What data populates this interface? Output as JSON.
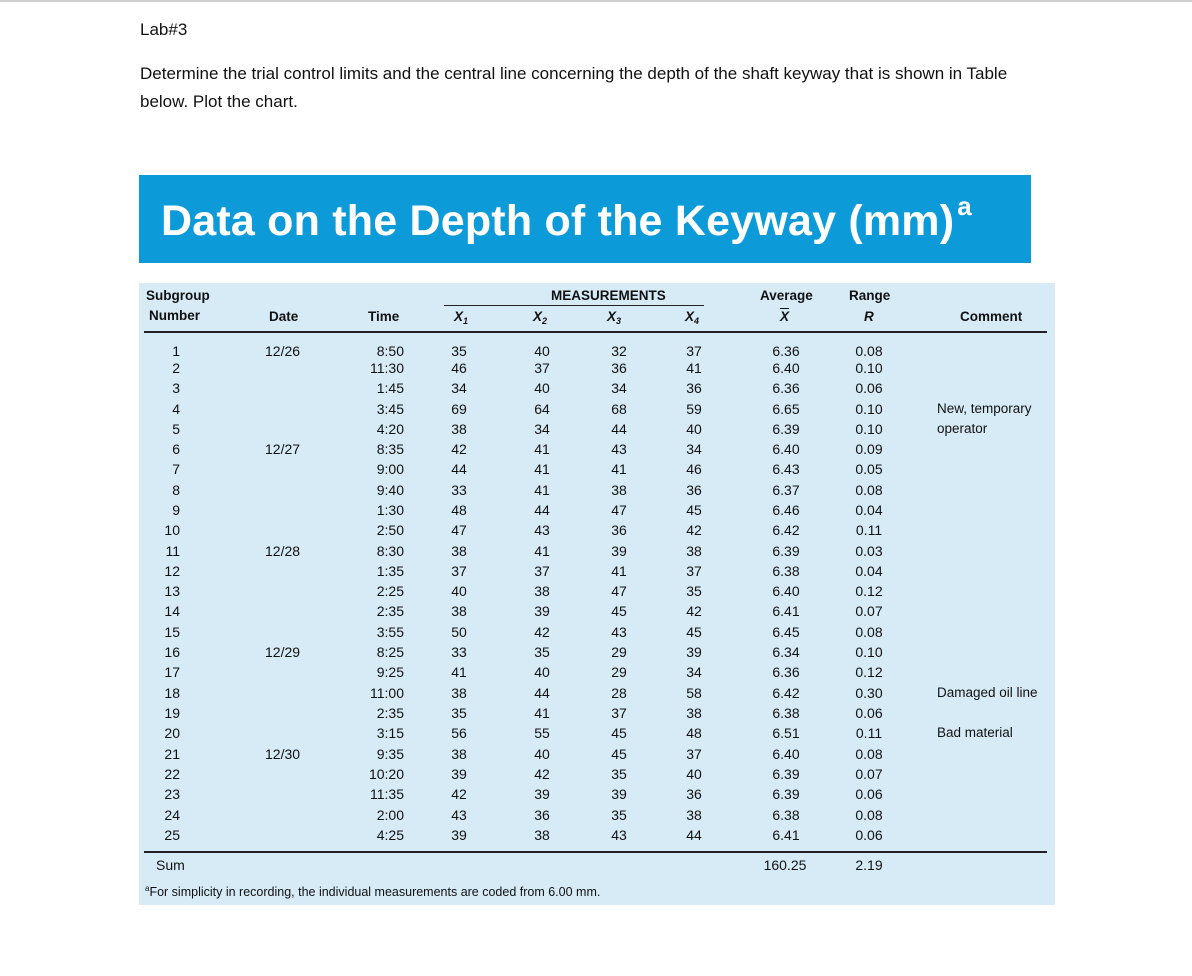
{
  "lab_title": "Lab#3",
  "question": "Determine the trial control limits and the central line concerning the depth of the shaft keyway that is shown in Table below.  Plot the chart.",
  "table": {
    "title": "Data on the Depth of the Keyway (mm)",
    "title_sup": "a",
    "headers": {
      "subgroup_line1": "Subgroup",
      "subgroup_line2": "Number",
      "date": "Date",
      "time": "Time",
      "measurements": "MEASUREMENTS",
      "x1": "X",
      "x1_sub": "1",
      "x2": "X",
      "x2_sub": "2",
      "x3": "X",
      "x3_sub": "3",
      "x4": "X",
      "x4_sub": "4",
      "average": "Average",
      "average_sym": "X",
      "range": "Range",
      "range_sym": "R",
      "comment": "Comment"
    },
    "rows": [
      {
        "n": "1",
        "date": "12/26",
        "time": "8:50",
        "x1": "35",
        "x2": "40",
        "x3": "32",
        "x4": "37",
        "avg": "6.36",
        "range": "0.08",
        "comment": ""
      },
      {
        "n": "2",
        "date": "",
        "time": "11:30",
        "x1": "46",
        "x2": "37",
        "x3": "36",
        "x4": "41",
        "avg": "6.40",
        "range": "0.10",
        "comment": ""
      },
      {
        "n": "3",
        "date": "",
        "time": "1:45",
        "x1": "34",
        "x2": "40",
        "x3": "34",
        "x4": "36",
        "avg": "6.36",
        "range": "0.06",
        "comment": ""
      },
      {
        "n": "4",
        "date": "",
        "time": "3:45",
        "x1": "69",
        "x2": "64",
        "x3": "68",
        "x4": "59",
        "avg": "6.65",
        "range": "0.10",
        "comment": "New, temporary"
      },
      {
        "n": "5",
        "date": "",
        "time": "4:20",
        "x1": "38",
        "x2": "34",
        "x3": "44",
        "x4": "40",
        "avg": "6.39",
        "range": "0.10",
        "comment": "operator"
      },
      {
        "n": "6",
        "date": "12/27",
        "time": "8:35",
        "x1": "42",
        "x2": "41",
        "x3": "43",
        "x4": "34",
        "avg": "6.40",
        "range": "0.09",
        "comment": ""
      },
      {
        "n": "7",
        "date": "",
        "time": "9:00",
        "x1": "44",
        "x2": "41",
        "x3": "41",
        "x4": "46",
        "avg": "6.43",
        "range": "0.05",
        "comment": ""
      },
      {
        "n": "8",
        "date": "",
        "time": "9:40",
        "x1": "33",
        "x2": "41",
        "x3": "38",
        "x4": "36",
        "avg": "6.37",
        "range": "0.08",
        "comment": ""
      },
      {
        "n": "9",
        "date": "",
        "time": "1:30",
        "x1": "48",
        "x2": "44",
        "x3": "47",
        "x4": "45",
        "avg": "6.46",
        "range": "0.04",
        "comment": ""
      },
      {
        "n": "10",
        "date": "",
        "time": "2:50",
        "x1": "47",
        "x2": "43",
        "x3": "36",
        "x4": "42",
        "avg": "6.42",
        "range": "0.11",
        "comment": ""
      },
      {
        "n": "11",
        "date": "12/28",
        "time": "8:30",
        "x1": "38",
        "x2": "41",
        "x3": "39",
        "x4": "38",
        "avg": "6.39",
        "range": "0.03",
        "comment": ""
      },
      {
        "n": "12",
        "date": "",
        "time": "1:35",
        "x1": "37",
        "x2": "37",
        "x3": "41",
        "x4": "37",
        "avg": "6.38",
        "range": "0.04",
        "comment": ""
      },
      {
        "n": "13",
        "date": "",
        "time": "2:25",
        "x1": "40",
        "x2": "38",
        "x3": "47",
        "x4": "35",
        "avg": "6.40",
        "range": "0.12",
        "comment": ""
      },
      {
        "n": "14",
        "date": "",
        "time": "2:35",
        "x1": "38",
        "x2": "39",
        "x3": "45",
        "x4": "42",
        "avg": "6.41",
        "range": "0.07",
        "comment": ""
      },
      {
        "n": "15",
        "date": "",
        "time": "3:55",
        "x1": "50",
        "x2": "42",
        "x3": "43",
        "x4": "45",
        "avg": "6.45",
        "range": "0.08",
        "comment": ""
      },
      {
        "n": "16",
        "date": "12/29",
        "time": "8:25",
        "x1": "33",
        "x2": "35",
        "x3": "29",
        "x4": "39",
        "avg": "6.34",
        "range": "0.10",
        "comment": ""
      },
      {
        "n": "17",
        "date": "",
        "time": "9:25",
        "x1": "41",
        "x2": "40",
        "x3": "29",
        "x4": "34",
        "avg": "6.36",
        "range": "0.12",
        "comment": ""
      },
      {
        "n": "18",
        "date": "",
        "time": "11:00",
        "x1": "38",
        "x2": "44",
        "x3": "28",
        "x4": "58",
        "avg": "6.42",
        "range": "0.30",
        "comment": "Damaged oil line"
      },
      {
        "n": "19",
        "date": "",
        "time": "2:35",
        "x1": "35",
        "x2": "41",
        "x3": "37",
        "x4": "38",
        "avg": "6.38",
        "range": "0.06",
        "comment": ""
      },
      {
        "n": "20",
        "date": "",
        "time": "3:15",
        "x1": "56",
        "x2": "55",
        "x3": "45",
        "x4": "48",
        "avg": "6.51",
        "range": "0.11",
        "comment": "Bad material"
      },
      {
        "n": "21",
        "date": "12/30",
        "time": "9:35",
        "x1": "38",
        "x2": "40",
        "x3": "45",
        "x4": "37",
        "avg": "6.40",
        "range": "0.08",
        "comment": ""
      },
      {
        "n": "22",
        "date": "",
        "time": "10:20",
        "x1": "39",
        "x2": "42",
        "x3": "35",
        "x4": "40",
        "avg": "6.39",
        "range": "0.07",
        "comment": ""
      },
      {
        "n": "23",
        "date": "",
        "time": "11:35",
        "x1": "42",
        "x2": "39",
        "x3": "39",
        "x4": "36",
        "avg": "6.39",
        "range": "0.06",
        "comment": ""
      },
      {
        "n": "24",
        "date": "",
        "time": "2:00",
        "x1": "43",
        "x2": "36",
        "x3": "35",
        "x4": "38",
        "avg": "6.38",
        "range": "0.08",
        "comment": ""
      },
      {
        "n": "25",
        "date": "",
        "time": "4:25",
        "x1": "39",
        "x2": "38",
        "x3": "43",
        "x4": "44",
        "avg": "6.41",
        "range": "0.06",
        "comment": ""
      }
    ],
    "sum_label": "Sum",
    "sum_avg": "160.25",
    "sum_range": "2.19",
    "footnote_sup": "a",
    "footnote": "For simplicity in recording, the individual measurements are coded from 6.00 mm."
  },
  "colors": {
    "banner": "#0d9ad9",
    "panel": "#d7ebf7"
  }
}
